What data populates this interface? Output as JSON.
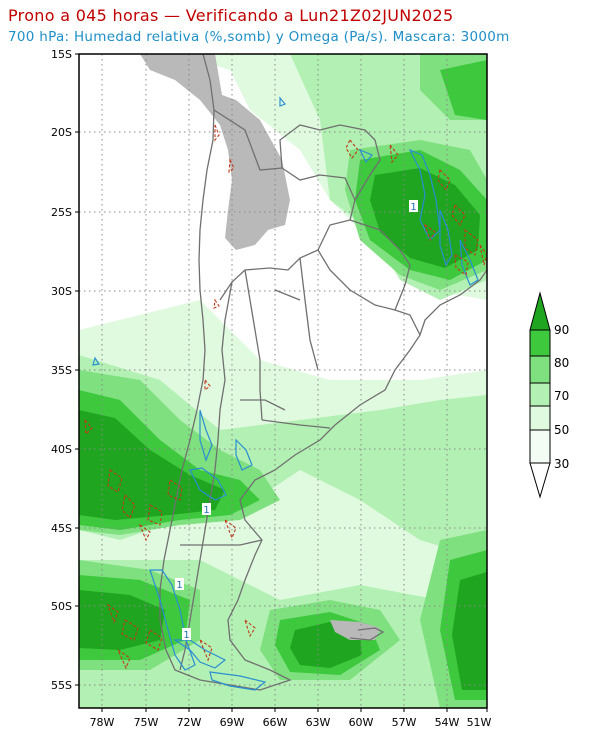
{
  "header": {
    "title": "Prono a 045 horas — Verificando a Lun21Z02JUN2025",
    "subtitle": "700 hPa: Humedad relativa (%,somb) y Omega (Pa/s). Mascara: 3000m"
  },
  "map": {
    "lat_labels": [
      "15S",
      "20S",
      "25S",
      "30S",
      "35S",
      "40S",
      "45S",
      "50S",
      "55S"
    ],
    "lon_labels": [
      "78W",
      "75W",
      "72W",
      "69W",
      "66W",
      "63W",
      "60W",
      "57W",
      "54W",
      "51W"
    ],
    "contour_labels": [
      "1",
      "1",
      "1",
      "1"
    ]
  },
  "colorbar": {
    "labels": [
      "90",
      "80",
      "70",
      "50",
      "30"
    ],
    "colors": [
      "#1fa51f",
      "#3ec83e",
      "#7fe07f",
      "#b3f0b3",
      "#e0fae0"
    ]
  },
  "colors": {
    "title": "#c00000",
    "subtitle": "#1e8fc8",
    "mask": "#b9b9b9",
    "omega_positive": "#2a8fd0",
    "omega_negative": "#c0391b"
  }
}
